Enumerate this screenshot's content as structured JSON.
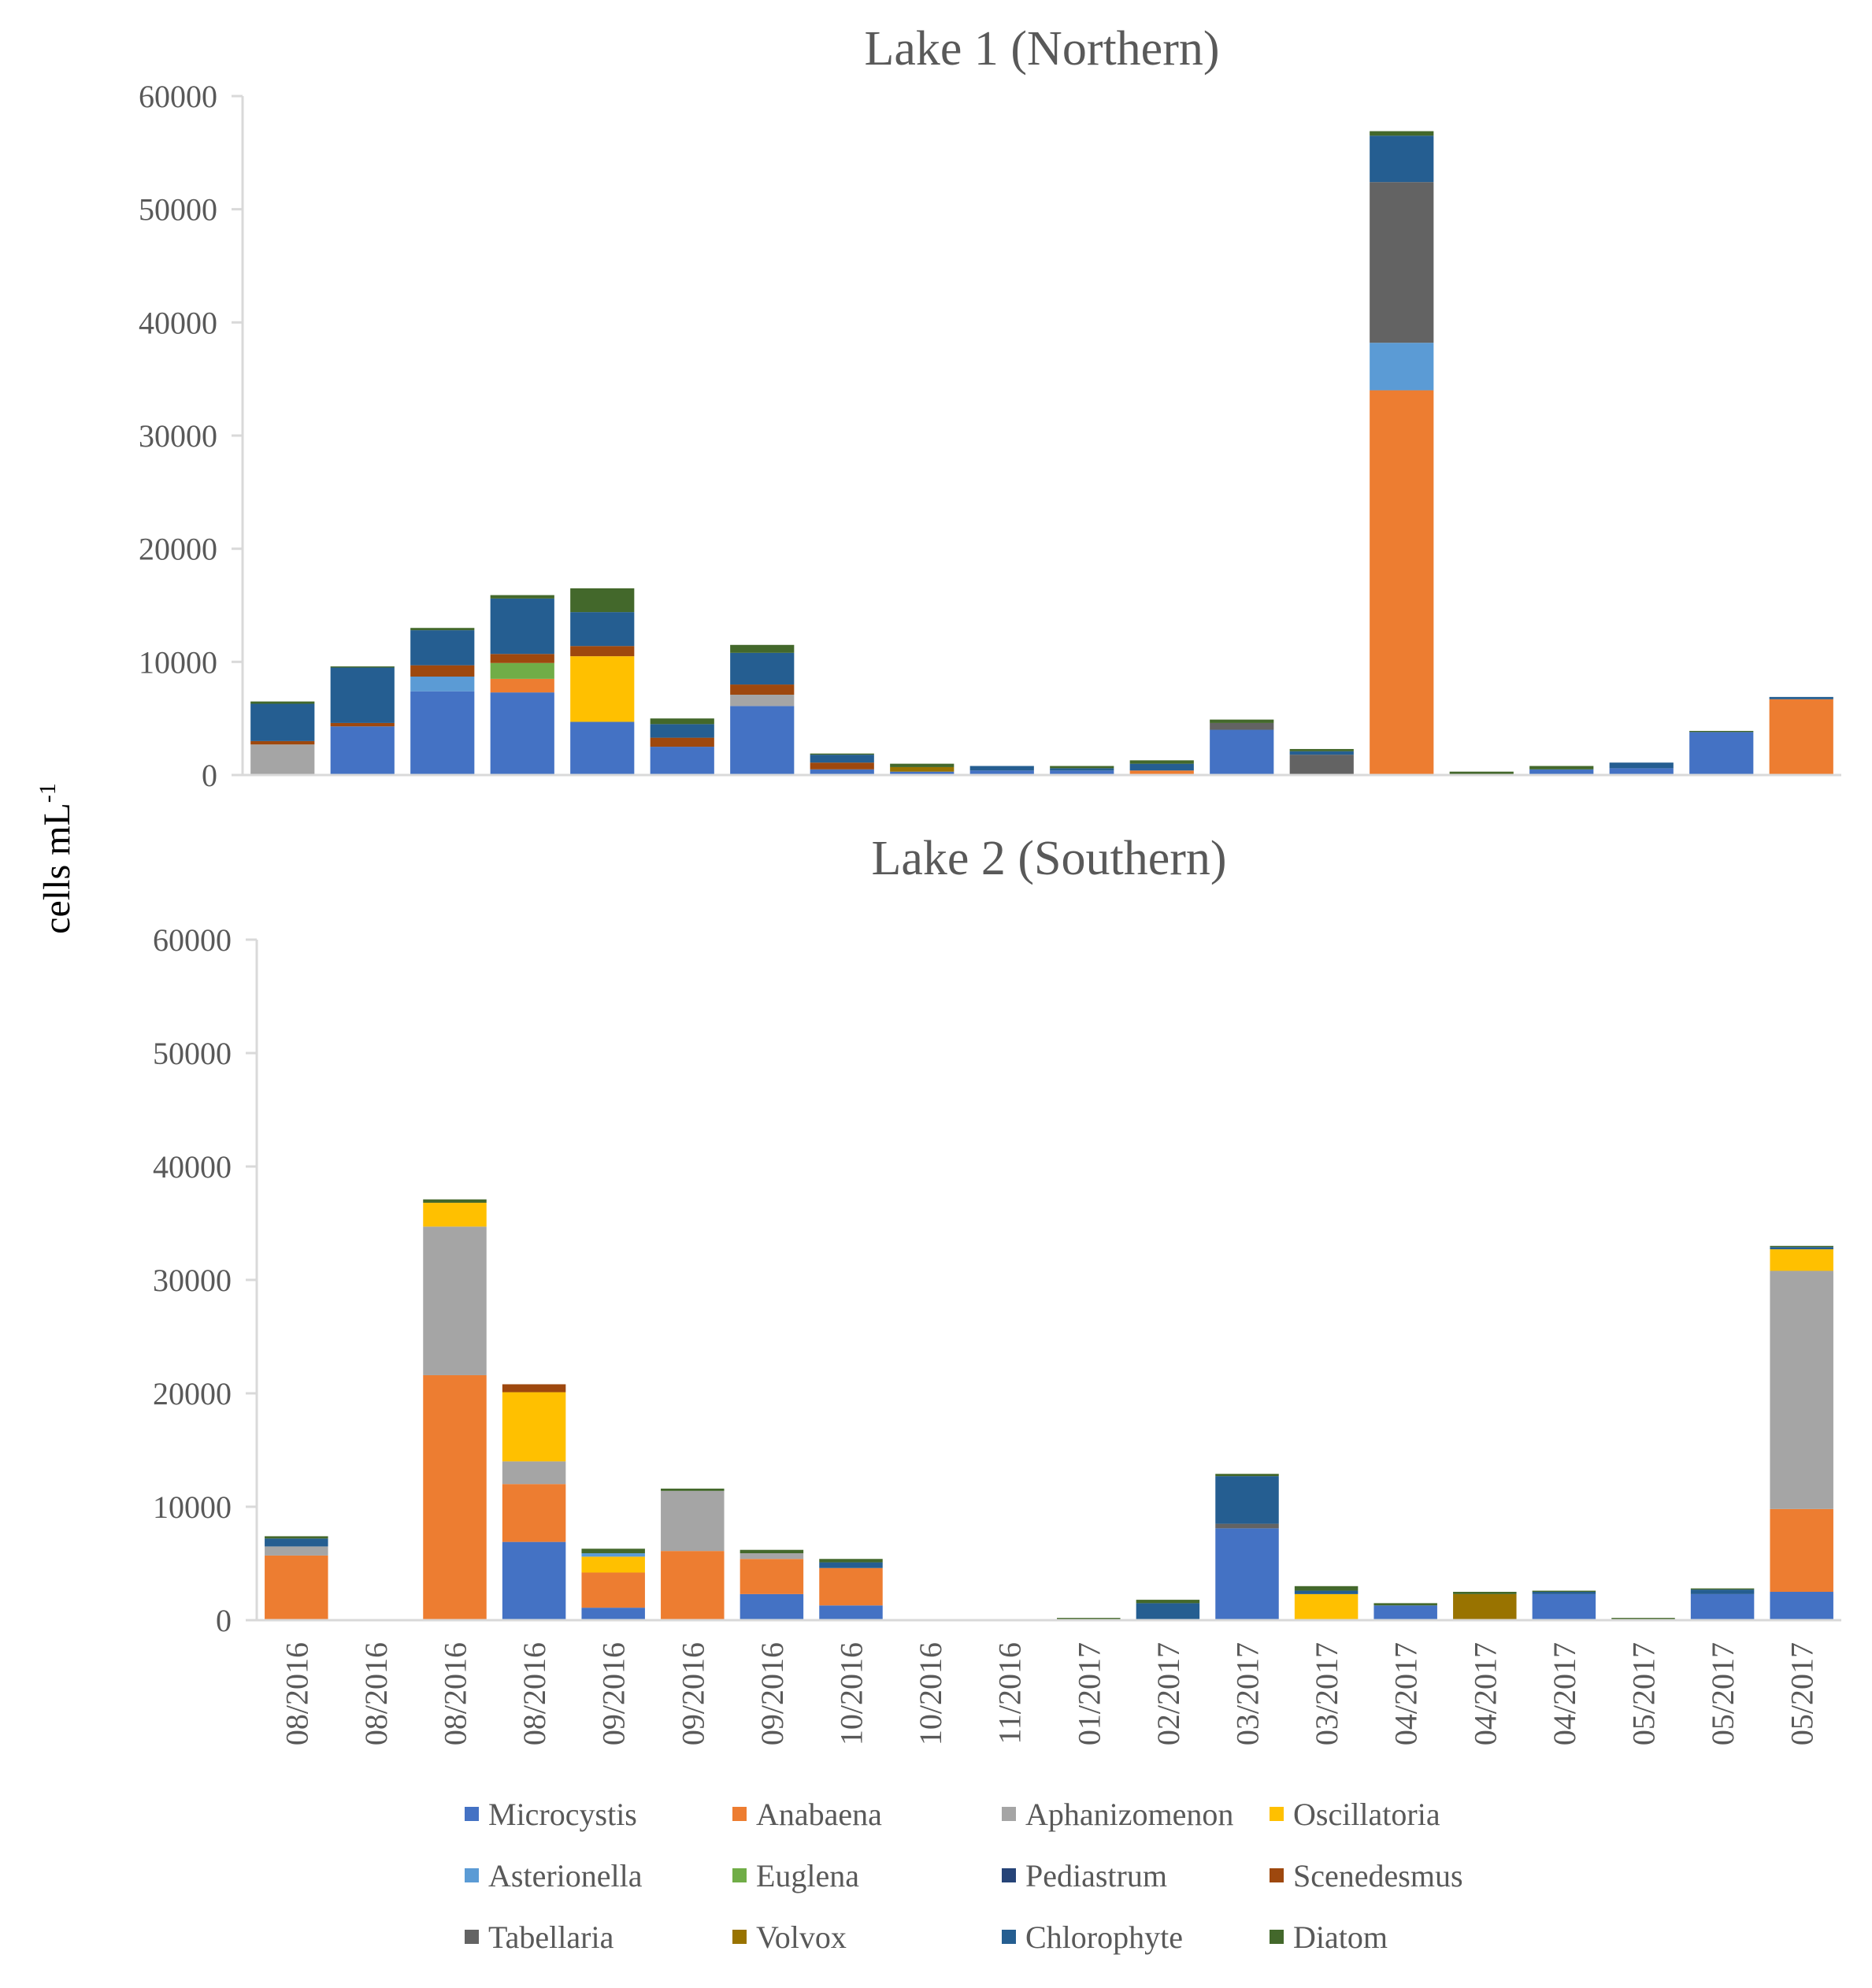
{
  "figure": {
    "ylabel_main": "cells mL",
    "ylabel_sup": "-1"
  },
  "species": [
    {
      "name": "Microcystis",
      "color": "#4472C4"
    },
    {
      "name": "Anabaena",
      "color": "#ED7D31"
    },
    {
      "name": "Aphanizomenon",
      "color": "#A5A5A5"
    },
    {
      "name": "Oscillatoria",
      "color": "#FFC000"
    },
    {
      "name": "Asterionella",
      "color": "#5B9BD5"
    },
    {
      "name": "Euglena",
      "color": "#70AD47"
    },
    {
      "name": "Pediastrum",
      "color": "#264478"
    },
    {
      "name": "Scenedesmus",
      "color": "#9E480E"
    },
    {
      "name": "Tabellaria",
      "color": "#636363"
    },
    {
      "name": "Volvox",
      "color": "#997300"
    },
    {
      "name": "Chlorophyte",
      "color": "#255E91"
    },
    {
      "name": "Diatom",
      "color": "#43682B"
    }
  ],
  "chart_data": [
    {
      "type": "bar",
      "stacked": true,
      "title": "Lake 1 (Northern)",
      "xlabel": "",
      "ylabel": "cells mL-1",
      "ylim": [
        0,
        60000
      ],
      "yticks": [
        0,
        10000,
        20000,
        30000,
        40000,
        50000,
        60000
      ],
      "categories": [
        "08/2016",
        "08/2016",
        "08/2016",
        "08/2016",
        "09/2016",
        "09/2016",
        "09/2016",
        "10/2016",
        "10/2016",
        "11/2016",
        "01/2017",
        "02/2017",
        "03/2017",
        "03/2017",
        "04/2017",
        "04/2017",
        "04/2017",
        "05/2017",
        "05/2017",
        "05/2017"
      ],
      "series": [
        {
          "name": "Microcystis",
          "values": [
            0,
            4300,
            7400,
            7300,
            4700,
            2500,
            6100,
            500,
            300,
            400,
            400,
            0,
            4000,
            0,
            0,
            0,
            500,
            600,
            3800,
            0
          ]
        },
        {
          "name": "Anabaena",
          "values": [
            0,
            0,
            0,
            1200,
            0,
            0,
            0,
            0,
            0,
            0,
            0,
            400,
            0,
            0,
            34000,
            0,
            0,
            0,
            0,
            6700
          ]
        },
        {
          "name": "Aphanizomenon",
          "values": [
            2700,
            0,
            0,
            0,
            0,
            0,
            1000,
            0,
            0,
            0,
            0,
            0,
            0,
            0,
            0,
            0,
            0,
            0,
            0,
            0
          ]
        },
        {
          "name": "Oscillatoria",
          "values": [
            0,
            0,
            0,
            0,
            5800,
            0,
            0,
            0,
            0,
            0,
            0,
            0,
            0,
            0,
            0,
            0,
            0,
            0,
            0,
            0
          ]
        },
        {
          "name": "Asterionella",
          "values": [
            0,
            0,
            1300,
            0,
            0,
            0,
            0,
            0,
            0,
            0,
            0,
            0,
            0,
            0,
            4200,
            0,
            0,
            0,
            0,
            0
          ]
        },
        {
          "name": "Euglena",
          "values": [
            0,
            0,
            0,
            1400,
            0,
            0,
            0,
            0,
            0,
            0,
            0,
            0,
            0,
            0,
            0,
            0,
            0,
            0,
            0,
            0
          ]
        },
        {
          "name": "Pediastrum",
          "values": [
            0,
            0,
            0,
            0,
            0,
            0,
            0,
            0,
            0,
            0,
            0,
            0,
            0,
            0,
            0,
            0,
            0,
            0,
            0,
            0
          ]
        },
        {
          "name": "Scenedesmus",
          "values": [
            300,
            300,
            1000,
            800,
            900,
            800,
            900,
            600,
            0,
            0,
            0,
            0,
            0,
            0,
            0,
            0,
            0,
            0,
            0,
            0
          ]
        },
        {
          "name": "Tabellaria",
          "values": [
            0,
            0,
            0,
            0,
            0,
            0,
            0,
            0,
            0,
            0,
            0,
            0,
            600,
            1800,
            14200,
            0,
            0,
            0,
            0,
            0
          ]
        },
        {
          "name": "Volvox",
          "values": [
            0,
            0,
            0,
            0,
            0,
            0,
            0,
            0,
            400,
            0,
            0,
            0,
            0,
            0,
            0,
            0,
            0,
            0,
            0,
            0
          ]
        },
        {
          "name": "Chlorophyte",
          "values": [
            3300,
            4900,
            3100,
            4900,
            3000,
            1200,
            2800,
            700,
            0,
            400,
            200,
            600,
            0,
            300,
            4100,
            0,
            0,
            500,
            0,
            200
          ]
        },
        {
          "name": "Diatom",
          "values": [
            200,
            100,
            200,
            300,
            2100,
            500,
            700,
            100,
            300,
            0,
            200,
            300,
            300,
            200,
            400,
            300,
            300,
            0,
            100,
            0
          ]
        }
      ]
    },
    {
      "type": "bar",
      "stacked": true,
      "title": "Lake 2 (Southern)",
      "xlabel": "",
      "ylabel": "cells mL-1",
      "ylim": [
        0,
        60000
      ],
      "yticks": [
        0,
        10000,
        20000,
        30000,
        40000,
        50000,
        60000
      ],
      "categories": [
        "08/2016",
        "08/2016",
        "08/2016",
        "08/2016",
        "09/2016",
        "09/2016",
        "09/2016",
        "10/2016",
        "10/2016",
        "11/2016",
        "01/2017",
        "02/2017",
        "03/2017",
        "03/2017",
        "04/2017",
        "04/2017",
        "04/2017",
        "05/2017",
        "05/2017",
        "05/2017"
      ],
      "series": [
        {
          "name": "Microcystis",
          "values": [
            0,
            0,
            0,
            6900,
            1100,
            0,
            2300,
            1300,
            0,
            0,
            0,
            0,
            8100,
            0,
            1300,
            0,
            2300,
            0,
            2300,
            2500
          ]
        },
        {
          "name": "Anabaena",
          "values": [
            5700,
            0,
            21600,
            5100,
            3100,
            6100,
            3100,
            3300,
            0,
            0,
            0,
            0,
            0,
            0,
            0,
            0,
            0,
            0,
            0,
            7300
          ]
        },
        {
          "name": "Aphanizomenon",
          "values": [
            800,
            0,
            13100,
            2000,
            0,
            5300,
            500,
            0,
            0,
            0,
            0,
            0,
            0,
            0,
            0,
            0,
            0,
            0,
            0,
            21000
          ]
        },
        {
          "name": "Oscillatoria",
          "values": [
            0,
            0,
            2100,
            6100,
            1400,
            0,
            0,
            0,
            0,
            0,
            0,
            0,
            0,
            2300,
            0,
            0,
            0,
            0,
            0,
            1900
          ]
        },
        {
          "name": "Asterionella",
          "values": [
            0,
            0,
            0,
            0,
            300,
            0,
            0,
            0,
            0,
            0,
            0,
            0,
            0,
            0,
            0,
            0,
            0,
            0,
            0,
            0
          ]
        },
        {
          "name": "Euglena",
          "values": [
            0,
            0,
            0,
            0,
            0,
            0,
            0,
            0,
            0,
            0,
            0,
            0,
            0,
            0,
            0,
            0,
            0,
            0,
            0,
            0
          ]
        },
        {
          "name": "Pediastrum",
          "values": [
            0,
            0,
            0,
            0,
            0,
            0,
            0,
            0,
            0,
            0,
            0,
            0,
            0,
            0,
            0,
            0,
            0,
            0,
            0,
            0
          ]
        },
        {
          "name": "Scenedesmus",
          "values": [
            0,
            0,
            0,
            700,
            0,
            0,
            0,
            0,
            0,
            0,
            0,
            0,
            0,
            0,
            0,
            0,
            0,
            0,
            0,
            0
          ]
        },
        {
          "name": "Tabellaria",
          "values": [
            0,
            0,
            0,
            0,
            0,
            0,
            0,
            0,
            0,
            0,
            0,
            0,
            400,
            0,
            0,
            0,
            0,
            0,
            0,
            0
          ]
        },
        {
          "name": "Volvox",
          "values": [
            0,
            0,
            0,
            0,
            0,
            0,
            0,
            0,
            0,
            0,
            0,
            0,
            0,
            0,
            0,
            2300,
            0,
            0,
            0,
            0
          ]
        },
        {
          "name": "Chlorophyte",
          "values": [
            700,
            0,
            0,
            0,
            0,
            0,
            0,
            500,
            0,
            0,
            0,
            1500,
            4200,
            300,
            0,
            0,
            200,
            0,
            400,
            200
          ]
        },
        {
          "name": "Diatom",
          "values": [
            200,
            0,
            300,
            0,
            400,
            200,
            300,
            300,
            0,
            0,
            200,
            300,
            200,
            400,
            200,
            200,
            100,
            200,
            100,
            100
          ]
        }
      ]
    }
  ]
}
